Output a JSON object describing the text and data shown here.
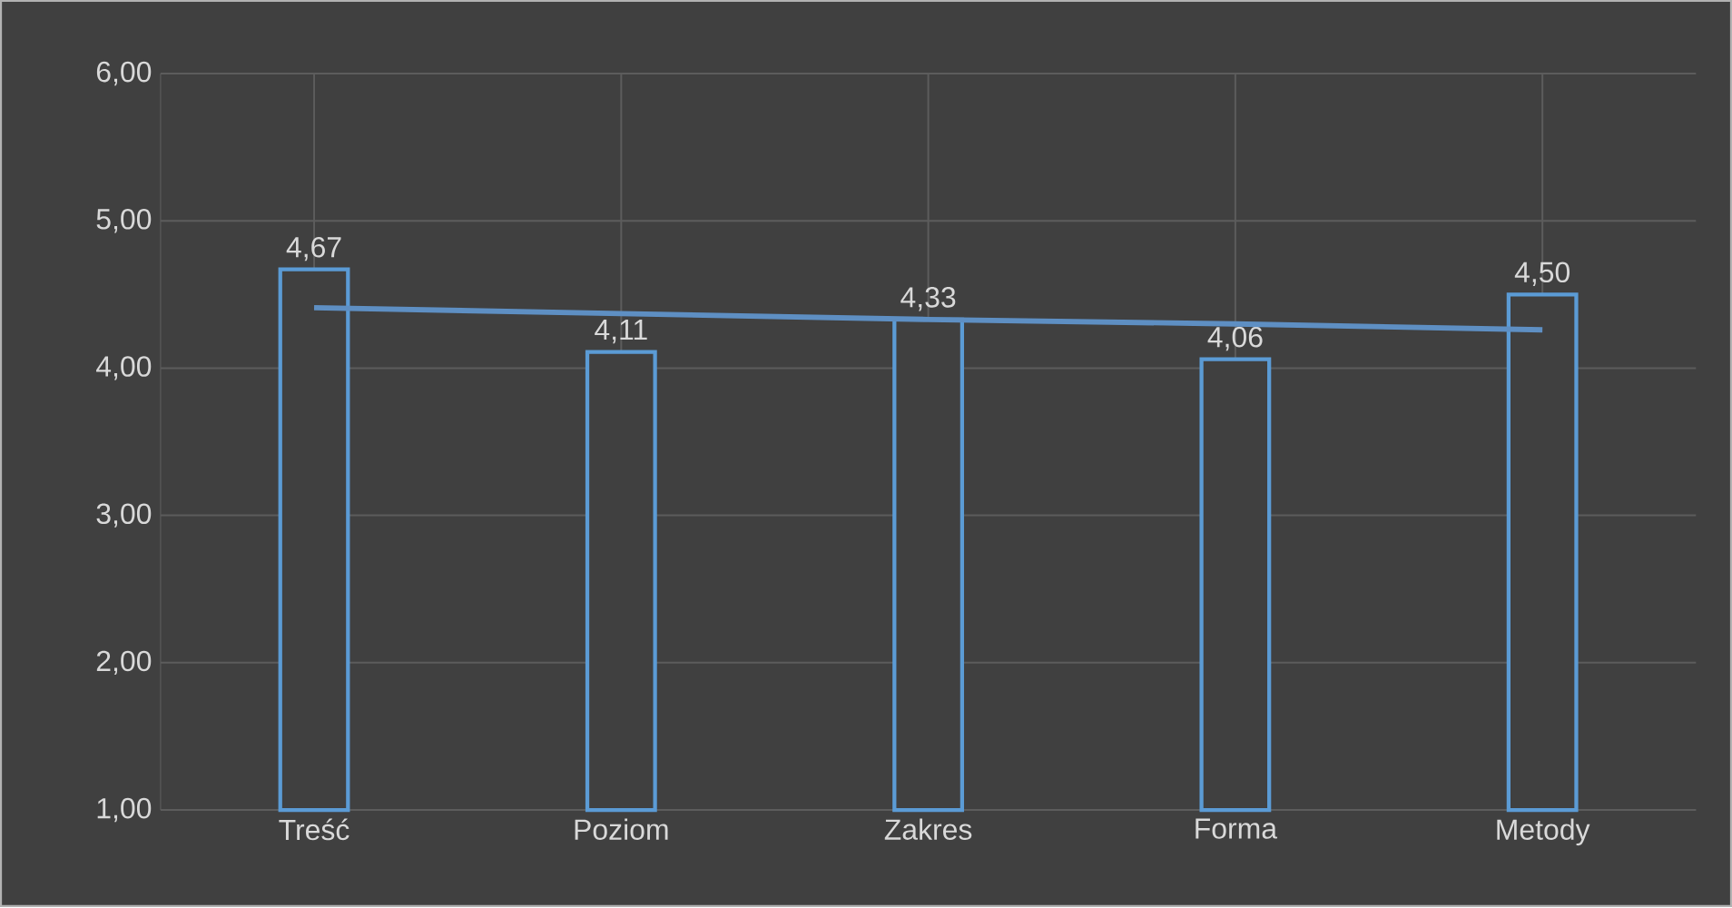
{
  "chart_data": {
    "type": "bar",
    "categories": [
      "Treść",
      "Poziom",
      "Zakres",
      "Forma",
      "Metody"
    ],
    "series": [
      {
        "color": "#5b9bd5",
        "values": [
          4.67,
          4.11,
          4.33,
          4.06,
          4.5
        ],
        "value_labels": [
          "4,67",
          "4,11",
          "4,33",
          "4,06",
          "4,50"
        ]
      },
      {
        "type": "line",
        "color": "#5e8fc3",
        "values": [
          4.41,
          4.37,
          4.33,
          4.3,
          4.26
        ]
      }
    ],
    "ylim": [
      1,
      6
    ],
    "yticks": [
      {
        "value": 1,
        "label": "1,00"
      },
      {
        "value": 2,
        "label": "2,00"
      },
      {
        "value": 3,
        "label": "3,00"
      },
      {
        "value": 4,
        "label": "4,00"
      },
      {
        "value": 5,
        "label": "5,00"
      },
      {
        "value": 6,
        "label": "6,00"
      }
    ],
    "grid": true
  }
}
